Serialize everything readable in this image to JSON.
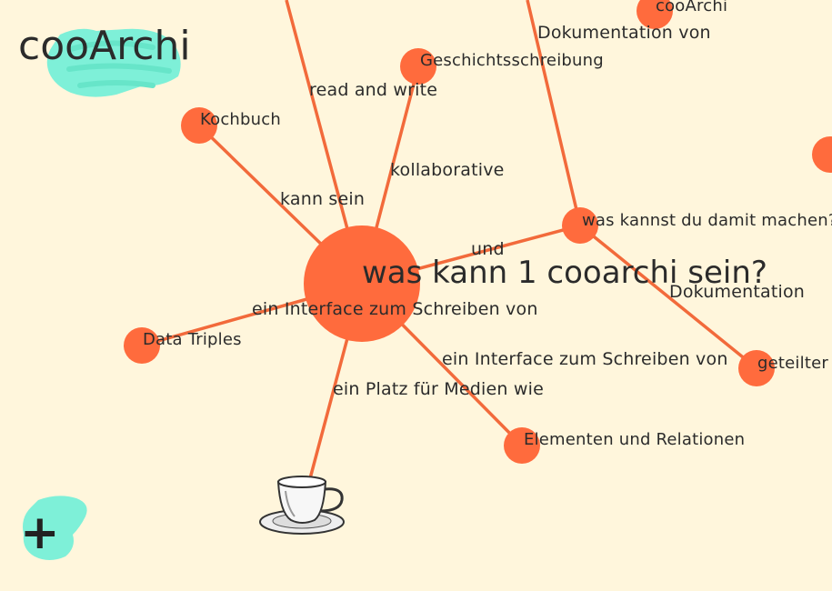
{
  "app": {
    "logo_text": "cooArchi",
    "add_label": "+"
  },
  "center": {
    "label": "was kann 1 cooarchi sein?"
  },
  "nodes": [
    {
      "id": "kochbuch",
      "label": "Kochbuch"
    },
    {
      "id": "geschichte",
      "label": "Geschichtsschreibung"
    },
    {
      "id": "cooarchi",
      "label": "cooArchi"
    },
    {
      "id": "wkdm",
      "label": "was kannst du damit machen?"
    },
    {
      "id": "triples",
      "label": "Data Triples"
    },
    {
      "id": "geteilter",
      "label": "geteilter"
    },
    {
      "id": "elemente",
      "label": "Elementen und Relationen"
    }
  ],
  "edges": [
    {
      "id": "e1",
      "label": "read and write"
    },
    {
      "id": "e2",
      "label": "Dokumentation von"
    },
    {
      "id": "e3",
      "label": "kollaborative"
    },
    {
      "id": "e4",
      "label": "kann sein"
    },
    {
      "id": "e5",
      "label": "und"
    },
    {
      "id": "e6",
      "label": "Dokumentation"
    },
    {
      "id": "e7",
      "label": "ein Interface zum Schreiben von"
    },
    {
      "id": "e8",
      "label": "ein Interface zum Schreiben von"
    },
    {
      "id": "e9",
      "label": "ein Platz für Medien wie"
    }
  ],
  "colors": {
    "background": "#fff6dc",
    "node": "#ff6b3d",
    "edge": "#f26a3b",
    "accent": "#7ef0d8",
    "text": "#2b2b2b"
  },
  "icons": {
    "media_node": "coffee-cup-icon"
  }
}
